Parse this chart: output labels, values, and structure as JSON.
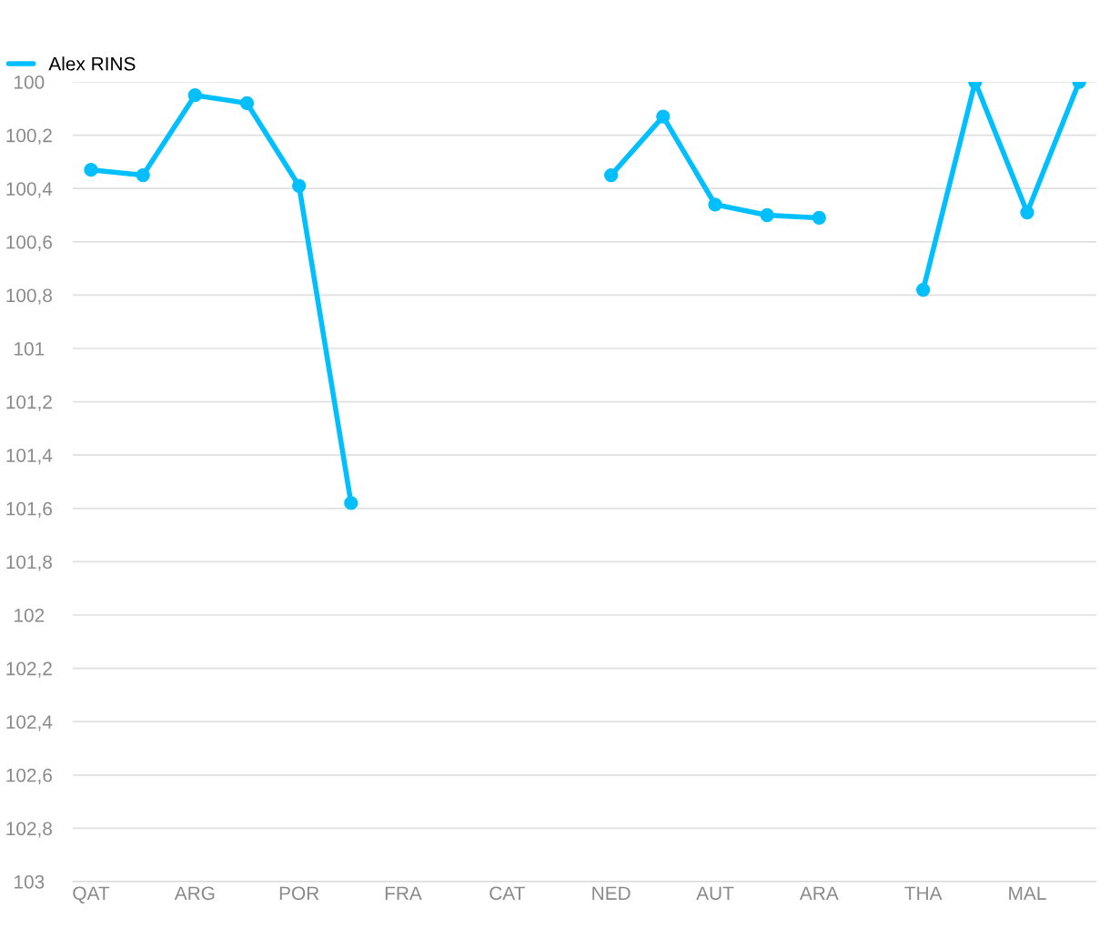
{
  "chart_data": {
    "type": "line",
    "categories": [
      "QAT",
      null,
      "ARG",
      null,
      "POR",
      null,
      "FRA",
      null,
      "CAT",
      null,
      "NED",
      null,
      "AUT",
      null,
      "ARA",
      null,
      "THA",
      null,
      "MAL",
      null
    ],
    "series": [
      {
        "name": "Alex RINS",
        "color": "#00bfff",
        "values": [
          100.33,
          100.35,
          100.05,
          100.08,
          100.39,
          101.58,
          null,
          null,
          null,
          null,
          100.35,
          100.13,
          100.46,
          100.5,
          100.51,
          null,
          100.78,
          100,
          100.49,
          100
        ]
      }
    ],
    "ylim": [
      103,
      100
    ],
    "yticks": [
      100,
      {
        "value": 100.2,
        "label": "100,2"
      },
      {
        "value": 100.4,
        "label": "100,4"
      },
      {
        "value": 100.6,
        "label": "100,6"
      },
      {
        "value": 100.8,
        "label": "100,8"
      },
      101,
      {
        "value": 101.2,
        "label": "101,2"
      },
      {
        "value": 101.4,
        "label": "101,4"
      },
      {
        "value": 101.6,
        "label": "101,6"
      },
      {
        "value": 101.8,
        "label": "101,8"
      },
      102,
      {
        "value": 102.2,
        "label": "102,2"
      },
      {
        "value": 102.4,
        "label": "102,4"
      },
      {
        "value": 102.6,
        "label": "102,6"
      },
      {
        "value": 102.8,
        "label": "102,8"
      },
      103
    ],
    "grid": "y",
    "legend": "top left",
    "marker": "circle",
    "line_style": "solid"
  }
}
